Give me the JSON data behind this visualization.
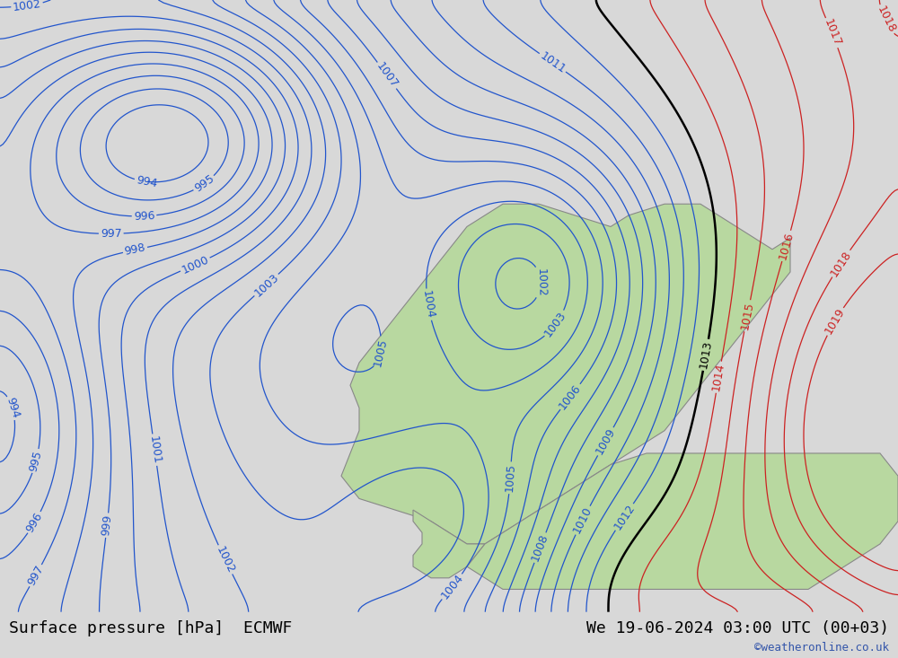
{
  "title_left": "Surface pressure [hPa]  ECMWF",
  "title_right": "We 19-06-2024 03:00 UTC (00+03)",
  "watermark": "©weatheronline.co.uk",
  "bg_color": "#d8d8d8",
  "land_color": "#b8d8a0",
  "sea_color": "#d8d8d8",
  "isobar_color_blue": "#2255cc",
  "isobar_color_red": "#cc2222",
  "isobar_color_black": "#000000",
  "label_fontsize": 9,
  "title_fontsize": 13,
  "watermark_color": "#3355aa",
  "footer_bg": "#e8e8e8"
}
